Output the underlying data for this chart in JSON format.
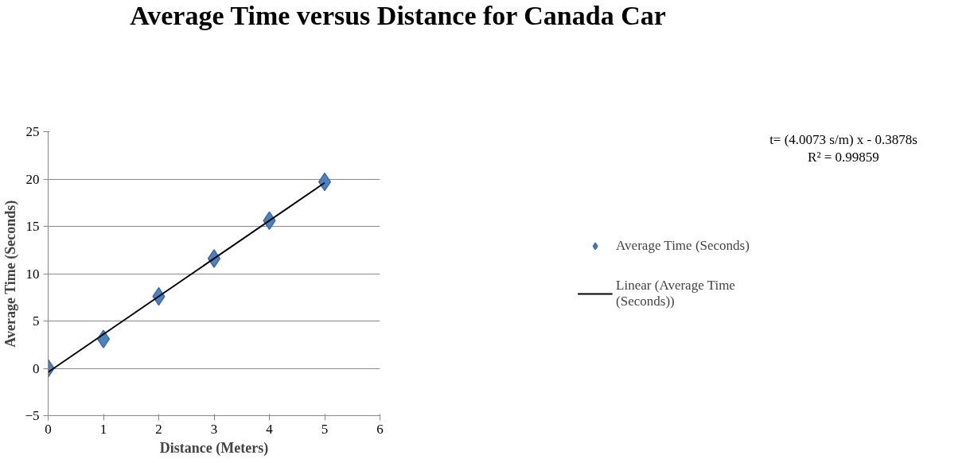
{
  "chart_data": {
    "type": "scatter",
    "title": "Average Time versus Distance for Canada Car",
    "xlabel": "Distance (Meters)",
    "ylabel": "Average Time (Seconds)",
    "x": [
      0,
      1,
      2,
      3,
      4,
      5
    ],
    "series": [
      {
        "name": "Average Time (Seconds)",
        "color": "#4f81bd",
        "values": [
          0,
          3.1,
          7.6,
          11.6,
          15.6,
          19.7
        ],
        "marker": "diamond"
      },
      {
        "name": "Linear (Average Time (Seconds))",
        "type": "line",
        "color": "#000000",
        "x": [
          0,
          5
        ],
        "values": [
          -0.4,
          19.6
        ],
        "marker": "none"
      }
    ],
    "annotations": [
      "t= (4.0073 s/m) x - 0.3878s",
      "R² = 0.99859"
    ],
    "xlim": [
      0,
      6
    ],
    "ylim": [
      -5,
      25
    ],
    "xticks": [
      0,
      1,
      2,
      3,
      4,
      5,
      6
    ],
    "yticks": [
      -5,
      0,
      5,
      10,
      15,
      20,
      25
    ],
    "grid": "y",
    "legend": "right",
    "line_style": "solid"
  }
}
